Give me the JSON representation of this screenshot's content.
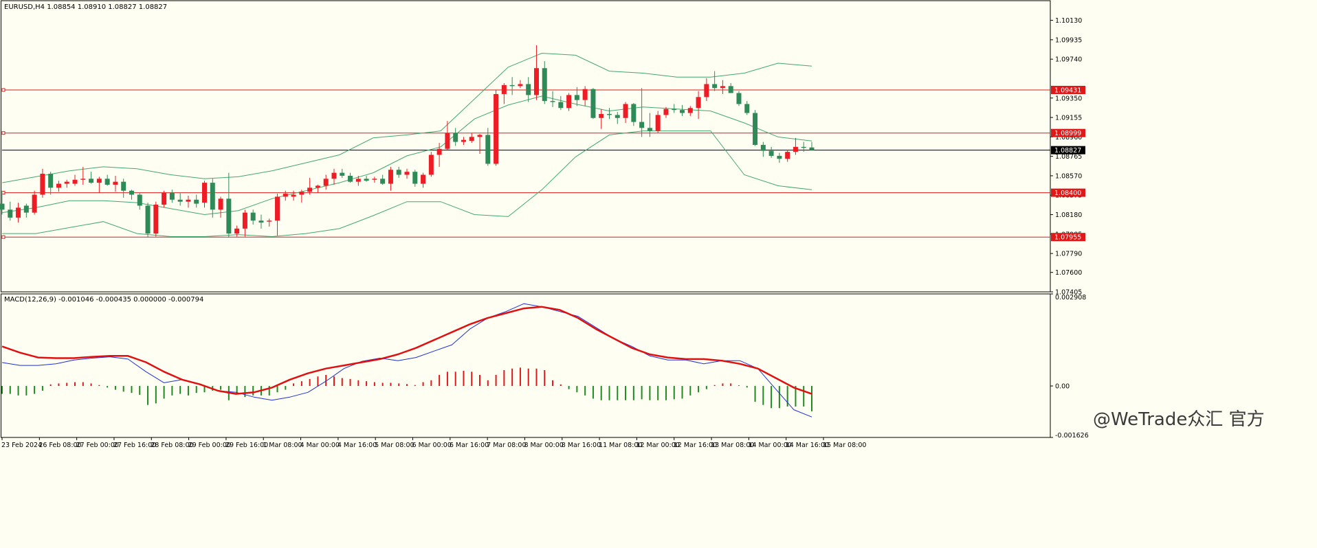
{
  "header": {
    "symbol": "EURUSD,H4",
    "ohlc": "1.08854 1.08910 1.08827 1.08827",
    "macd_label": "MACD(12,26,9) -0.001046 -0.000435 0.000000 -0.000794"
  },
  "watermark": "@WeTrade众汇 官方",
  "colors": {
    "background": "#fefef2",
    "bull": "#ee1c25",
    "bear": "#2e8b57",
    "band": "#41a86d",
    "level": "#e01818",
    "macd_signal": "#e01010",
    "macd_main": "#1c2fd8",
    "hist_pos": "#e01818",
    "hist_neg": "#1f8a1f",
    "tag_bg": "#e01818",
    "current_tag_bg": "#000000"
  },
  "chart_data": [
    {
      "type": "candlestick",
      "title": "EURUSD,H4",
      "ylim": [
        1.07405,
        1.1032
      ],
      "y_ticks": [
        "1.10130",
        "1.09935",
        "1.09740",
        "1.09350",
        "1.09155",
        "1.08960",
        "1.08765",
        "1.08570",
        "1.08375",
        "1.08180",
        "1.07985",
        "1.07790",
        "1.07600",
        "1.07405"
      ],
      "x_ticks": [
        "23 Feb 2024",
        "26 Feb 08:00",
        "27 Feb 00:00",
        "27 Feb 16:00",
        "28 Feb 08:00",
        "29 Feb 00:00",
        "29 Feb 16:00",
        "1 Mar 08:00",
        "4 Mar 00:00",
        "4 Mar 16:00",
        "5 Mar 08:00",
        "6 Mar 00:00",
        "6 Mar 16:00",
        "7 Mar 08:00",
        "8 Mar 00:00",
        "8 Mar 16:00",
        "11 Mar 08:00",
        "12 Mar 00:00",
        "12 Mar 16:00",
        "13 Mar 08:00",
        "14 Mar 00:00",
        "14 Mar 16:00",
        "15 Mar 08:00"
      ],
      "price_levels": [
        {
          "label": "1.09431",
          "value": 1.09431
        },
        {
          "label": "1.08999",
          "value": 1.08999
        },
        {
          "label": "1.08400",
          "value": 1.084
        },
        {
          "label": "1.07955",
          "value": 1.07955
        }
      ],
      "current_price": {
        "label": "1.08827",
        "value": 1.08827
      },
      "candles": [
        [
          1.0829,
          1.0842,
          1.0818,
          1.0823
        ],
        [
          1.0823,
          1.0831,
          1.0812,
          1.0815
        ],
        [
          1.0815,
          1.083,
          1.081,
          1.0825
        ],
        [
          1.0827,
          1.0829,
          1.0815,
          1.082
        ],
        [
          1.082,
          1.0842,
          1.0818,
          1.0838
        ],
        [
          1.0838,
          1.0864,
          1.0835,
          1.0859
        ],
        [
          1.0859,
          1.0861,
          1.0838,
          1.0845
        ],
        [
          1.0845,
          1.0852,
          1.0841,
          1.0849
        ],
        [
          1.0849,
          1.0853,
          1.0845,
          1.0851
        ],
        [
          1.0849,
          1.0858,
          1.0847,
          1.0853
        ],
        [
          1.0853,
          1.0866,
          1.0848,
          1.0854
        ],
        [
          1.0854,
          1.0861,
          1.0849,
          1.085
        ],
        [
          1.085,
          1.0856,
          1.084,
          1.0854
        ],
        [
          1.0854,
          1.0858,
          1.0847,
          1.0848
        ],
        [
          1.0848,
          1.0857,
          1.0841,
          1.0851
        ],
        [
          1.0851,
          1.0854,
          1.0835,
          1.0842
        ],
        [
          1.0842,
          1.0843,
          1.0833,
          1.0838
        ],
        [
          1.0838,
          1.084,
          1.0823,
          1.0827
        ],
        [
          1.0827,
          1.083,
          1.0795,
          1.0799
        ],
        [
          1.0799,
          1.0831,
          1.0796,
          1.0828
        ],
        [
          1.0828,
          1.0842,
          1.0825,
          1.084
        ],
        [
          1.084,
          1.0843,
          1.083,
          1.0833
        ],
        [
          1.0833,
          1.084,
          1.0827,
          1.0831
        ],
        [
          1.0831,
          1.0837,
          1.0825,
          1.0833
        ],
        [
          1.0833,
          1.0838,
          1.0825,
          1.0829
        ],
        [
          1.083,
          1.0852,
          1.0825,
          1.085
        ],
        [
          1.085,
          1.0854,
          1.0815,
          1.0823
        ],
        [
          1.0823,
          1.0836,
          1.0815,
          1.0834
        ],
        [
          1.0834,
          1.086,
          1.0795,
          1.0799
        ],
        [
          1.0799,
          1.0807,
          1.0796,
          1.0804
        ],
        [
          1.0804,
          1.0823,
          1.0796,
          1.082
        ],
        [
          1.082,
          1.0823,
          1.0808,
          1.0812
        ],
        [
          1.0812,
          1.0818,
          1.0804,
          1.081
        ],
        [
          1.0811,
          1.0814,
          1.0806,
          1.0812
        ],
        [
          1.0812,
          1.0839,
          1.0797,
          1.0836
        ],
        [
          1.0836,
          1.0842,
          1.0832,
          1.0839
        ],
        [
          1.0836,
          1.0842,
          1.0832,
          1.0838
        ],
        [
          1.0838,
          1.0843,
          1.083,
          1.0841
        ],
        [
          1.0841,
          1.0855,
          1.0838,
          1.0845
        ],
        [
          1.0845,
          1.0848,
          1.084,
          1.0847
        ],
        [
          1.0847,
          1.0858,
          1.0843,
          1.0854
        ],
        [
          1.0854,
          1.0864,
          1.0848,
          1.086
        ],
        [
          1.086,
          1.0864,
          1.0855,
          1.0857
        ],
        [
          1.0857,
          1.086,
          1.085,
          1.0851
        ],
        [
          1.0851,
          1.0857,
          1.0847,
          1.0854
        ],
        [
          1.0854,
          1.0857,
          1.0851,
          1.0852
        ],
        [
          1.0853,
          1.0856,
          1.085,
          1.0854
        ],
        [
          1.0854,
          1.0858,
          1.0848,
          1.0849
        ],
        [
          1.0849,
          1.0866,
          1.0842,
          1.0863
        ],
        [
          1.0863,
          1.0866,
          1.0855,
          1.0858
        ],
        [
          1.0858,
          1.0864,
          1.0854,
          1.0861
        ],
        [
          1.0861,
          1.0863,
          1.0846,
          1.0849
        ],
        [
          1.0849,
          1.086,
          1.0845,
          1.0858
        ],
        [
          1.0858,
          1.0881,
          1.0856,
          1.0878
        ],
        [
          1.0878,
          1.089,
          1.0866,
          1.0884
        ],
        [
          1.0884,
          1.0912,
          1.0883,
          1.09
        ],
        [
          1.09,
          1.0905,
          1.0887,
          1.0891
        ],
        [
          1.0891,
          1.0896,
          1.0888,
          1.0893
        ],
        [
          1.0892,
          1.09,
          1.089,
          1.0896
        ],
        [
          1.0896,
          1.0899,
          1.0879,
          1.0898
        ],
        [
          1.0898,
          1.0905,
          1.0867,
          1.0869
        ],
        [
          1.0869,
          1.0943,
          1.0867,
          1.0939
        ],
        [
          1.0939,
          1.095,
          1.0929,
          1.0948
        ],
        [
          1.0948,
          1.0956,
          1.0938,
          1.0947
        ],
        [
          1.0947,
          1.0953,
          1.0945,
          1.0949
        ],
        [
          1.0949,
          1.0956,
          1.0931,
          1.0938
        ],
        [
          1.0938,
          1.0988,
          1.0933,
          1.0965
        ],
        [
          1.0965,
          1.0972,
          1.0929,
          1.0932
        ],
        [
          1.0932,
          1.0942,
          1.0926,
          1.0931
        ],
        [
          1.0931,
          1.0937,
          1.0923,
          1.0925
        ],
        [
          1.0925,
          1.094,
          1.0922,
          1.0938
        ],
        [
          1.0938,
          1.0946,
          1.0927,
          1.0933
        ],
        [
          1.0933,
          1.0947,
          1.0927,
          1.0944
        ],
        [
          1.0944,
          1.0945,
          1.0914,
          1.0915
        ],
        [
          1.0915,
          1.0924,
          1.0904,
          1.0919
        ],
        [
          1.0919,
          1.0925,
          1.0914,
          1.0918
        ],
        [
          1.0918,
          1.0921,
          1.0909,
          1.0915
        ],
        [
          1.0915,
          1.0931,
          1.091,
          1.0929
        ],
        [
          1.0929,
          1.093,
          1.0907,
          1.0911
        ],
        [
          1.0911,
          1.0945,
          1.0896,
          1.0905
        ],
        [
          1.0905,
          1.092,
          1.0896,
          1.0902
        ],
        [
          1.0902,
          1.0922,
          1.09,
          1.0918
        ],
        [
          1.0918,
          1.0926,
          1.0915,
          1.0924
        ],
        [
          1.0924,
          1.0929,
          1.092,
          1.0923
        ],
        [
          1.0923,
          1.0928,
          1.0917,
          1.092
        ],
        [
          1.092,
          1.0927,
          1.0917,
          1.0925
        ],
        [
          1.0925,
          1.0942,
          1.0914,
          1.0936
        ],
        [
          1.0936,
          1.0955,
          1.0932,
          1.0949
        ],
        [
          1.0949,
          1.0962,
          1.0942,
          1.0945
        ],
        [
          1.0945,
          1.0953,
          1.0939,
          1.0947
        ],
        [
          1.0947,
          1.095,
          1.094,
          1.094
        ],
        [
          1.094,
          1.0942,
          1.0927,
          1.0929
        ],
        [
          1.0929,
          1.0932,
          1.0918,
          1.092
        ],
        [
          1.092,
          1.0923,
          1.0887,
          1.0888
        ],
        [
          1.0888,
          1.0891,
          1.0876,
          1.0882
        ],
        [
          1.0882,
          1.0886,
          1.0875,
          1.0877
        ],
        [
          1.0877,
          1.088,
          1.087,
          1.0874
        ],
        [
          1.0874,
          1.0883,
          1.0871,
          1.0881
        ],
        [
          1.0881,
          1.0895,
          1.0878,
          1.0886
        ],
        [
          1.0886,
          1.0891,
          1.0881,
          1.0885
        ],
        [
          1.08854,
          1.0891,
          1.08827,
          1.08827
        ]
      ],
      "bollinger": {
        "upper": [
          1.085,
          1.0856,
          1.0862,
          1.0866,
          1.0864,
          1.0858,
          1.0854,
          1.0856,
          1.0862,
          1.087,
          1.0878,
          1.0895,
          1.0898,
          1.0902,
          1.0934,
          1.0966,
          1.098,
          1.0978,
          1.0962,
          1.096,
          1.0956,
          1.0956,
          1.096,
          1.097,
          1.0967
        ],
        "middle": [
          1.082,
          1.0825,
          1.0832,
          1.0832,
          1.083,
          1.0824,
          1.0818,
          1.0822,
          1.0834,
          1.0842,
          1.085,
          1.086,
          1.0877,
          1.0886,
          1.0914,
          1.0928,
          1.0937,
          1.0929,
          1.0922,
          1.0926,
          1.0924,
          1.0922,
          1.091,
          1.0896,
          1.0892
        ],
        "lower": [
          1.0799,
          1.0799,
          1.0805,
          1.0811,
          1.0799,
          1.0796,
          1.0796,
          1.0798,
          1.0796,
          1.0799,
          1.0804,
          1.0817,
          1.0831,
          1.0831,
          1.0818,
          1.0816,
          1.0843,
          1.0876,
          1.0898,
          1.0902,
          1.0902,
          1.0902,
          1.0858,
          1.0847,
          1.0843
        ]
      }
    },
    {
      "type": "macd",
      "title": "MACD(12,26,9)",
      "ylim": [
        -0.001626,
        0.002908
      ],
      "y_ticks": [
        "0.002908",
        "0.00",
        "-0.001626"
      ],
      "histogram": [
        -0.00025,
        -0.00025,
        -0.0003,
        -0.0003,
        -0.00025,
        -0.00015,
        5e-05,
        8e-05,
        0.0001,
        0.00012,
        0.00012,
        8e-05,
        3e-05,
        -5e-05,
        -0.00012,
        -0.00018,
        -0.00022,
        -0.00028,
        -0.0006,
        -0.00055,
        -0.0004,
        -0.0003,
        -0.00025,
        -0.0003,
        -0.00022,
        -0.0002,
        -0.00015,
        -0.00012,
        -0.00045,
        -0.00025,
        -0.00035,
        -0.0003,
        -0.0003,
        -0.0003,
        -0.0002,
        -0.00012,
        8e-05,
        0.00015,
        0.00022,
        0.0003,
        0.00035,
        0.0003,
        0.00025,
        0.00022,
        0.00018,
        0.00015,
        0.00012,
        0.0001,
        0.0001,
        8e-05,
        6e-05,
        3e-05,
        0.00012,
        0.00018,
        0.00035,
        0.00045,
        0.00045,
        0.00048,
        0.00045,
        0.00035,
        0.00018,
        0.00035,
        0.0005,
        0.00055,
        0.00058,
        0.00055,
        0.00055,
        0.0005,
        0.00018,
        5e-05,
        -0.0001,
        -0.0002,
        -0.0003,
        -0.0004,
        -0.00045,
        -0.00045,
        -0.00045,
        -0.00045,
        -0.00045,
        -0.00042,
        -0.00045,
        -0.00045,
        -0.00045,
        -0.00042,
        -0.0004,
        -0.0003,
        -0.0002,
        -0.0001,
        3e-05,
        8e-05,
        8e-05,
        2e-05,
        -5e-05,
        -0.0005,
        -0.0006,
        -0.0007,
        -0.0007,
        -0.00065,
        -0.00065,
        -0.00065,
        -0.0008
      ],
      "main": [
        0.00074,
        0.00065,
        0.00065,
        0.0007,
        0.00082,
        0.00088,
        0.00092,
        0.00085,
        0.00045,
        0.0001,
        0.0002,
        5e-05,
        -0.00015,
        -0.0002,
        -0.00035,
        -0.00045,
        -0.00035,
        -0.0002,
        0.00015,
        0.00055,
        0.00078,
        0.00088,
        0.0008,
        0.0009,
        0.0011,
        0.0013,
        0.0018,
        0.00215,
        0.00235,
        0.0026,
        0.0025,
        0.00235,
        0.0022,
        0.00185,
        0.0015,
        0.00125,
        0.00095,
        0.00082,
        0.00082,
        0.0007,
        0.0008,
        0.0008,
        0.00055,
        -0.0001,
        -0.00075,
        -0.00098
      ],
      "signal": [
        0.00125,
        0.00105,
        0.0009,
        0.00088,
        0.00088,
        0.00092,
        0.00095,
        0.00095,
        0.00075,
        0.00045,
        0.0002,
        5e-05,
        -0.00015,
        -0.00025,
        -0.0002,
        -5e-05,
        0.0002,
        0.0004,
        0.00055,
        0.00065,
        0.00075,
        0.00085,
        0.001,
        0.0012,
        0.00145,
        0.0017,
        0.00195,
        0.00215,
        0.0023,
        0.00245,
        0.0025,
        0.0024,
        0.00215,
        0.0018,
        0.0015,
        0.0012,
        0.001,
        0.0009,
        0.00085,
        0.00085,
        0.0008,
        0.0007,
        0.00055,
        0.00025,
        -5e-05,
        -0.00025
      ]
    }
  ]
}
